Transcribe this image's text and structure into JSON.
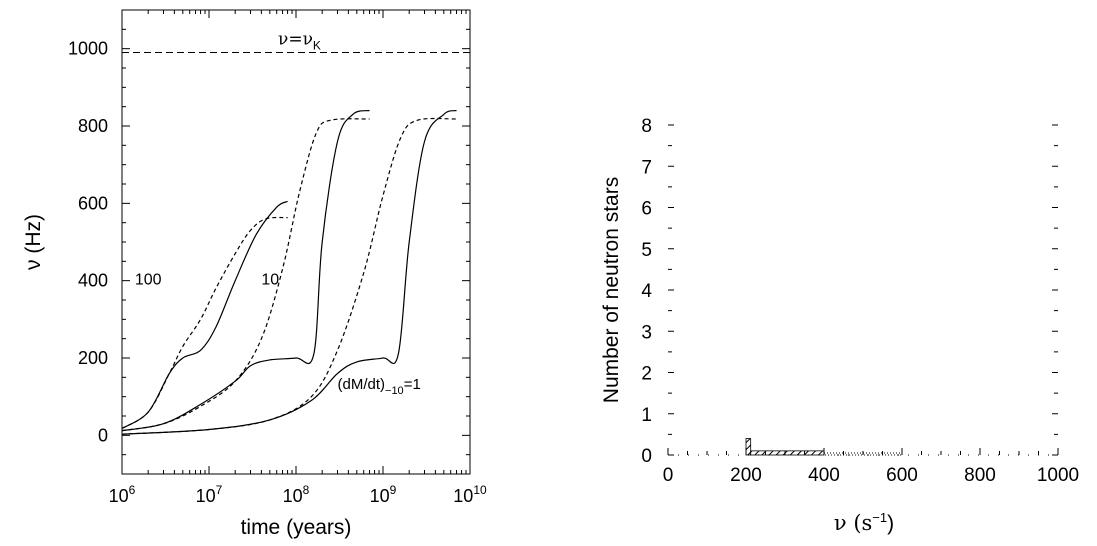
{
  "chart_data": [
    {
      "type": "line",
      "xscale": "log",
      "xlabel": "time (years)",
      "ylabel": "ν (Hz)",
      "xlim": [
        1000000,
        10000000000
      ],
      "ylim": [
        -100,
        1100
      ],
      "x_ticks": [
        {
          "value": 1000000,
          "base": "10",
          "exp": "6"
        },
        {
          "value": 10000000,
          "base": "10",
          "exp": "7"
        },
        {
          "value": 100000000,
          "base": "10",
          "exp": "8"
        },
        {
          "value": 1000000000,
          "base": "10",
          "exp": "9"
        },
        {
          "value": 10000000000,
          "base": "10",
          "exp": "10"
        }
      ],
      "y_ticks": [
        0,
        200,
        400,
        600,
        800,
        1000
      ],
      "kepler_line": {
        "y": 990,
        "label_main": "ν=ν",
        "label_sub": "K"
      },
      "annotations": [
        {
          "text": "100",
          "x": 2000000,
          "y": 390
        },
        {
          "text": "10",
          "x": 40000000,
          "y": 390
        },
        {
          "text": "(dM/dt)",
          "sub": "−10",
          "tail": "=1",
          "x": 300000000,
          "y": 120
        }
      ],
      "series": [
        {
          "style": "solid",
          "points": [
            [
              1000000,
              18
            ],
            [
              2000000,
              60
            ],
            [
              3500000,
              160
            ],
            [
              5000000,
              200
            ],
            [
              8000000,
              220
            ],
            [
              12000000,
              280
            ],
            [
              20000000,
              400
            ],
            [
              35000000,
              520
            ],
            [
              60000000,
              590
            ],
            [
              80000000,
              605
            ]
          ]
        },
        {
          "style": "dashed",
          "points": [
            [
              1000000,
              18
            ],
            [
              2000000,
              60
            ],
            [
              3500000,
              160
            ],
            [
              5000000,
              230
            ],
            [
              8000000,
              300
            ],
            [
              12000000,
              380
            ],
            [
              20000000,
              470
            ],
            [
              30000000,
              530
            ],
            [
              45000000,
              560
            ],
            [
              80000000,
              563
            ]
          ]
        },
        {
          "style": "solid",
          "points": [
            [
              1000000,
              12
            ],
            [
              3000000,
              30
            ],
            [
              8000000,
              80
            ],
            [
              20000000,
              140
            ],
            [
              30000000,
              180
            ],
            [
              50000000,
              195
            ],
            [
              100000000,
              200
            ],
            [
              160000000,
              210
            ],
            [
              200000000,
              500
            ],
            [
              300000000,
              760
            ],
            [
              450000000,
              830
            ],
            [
              700000000,
              840
            ]
          ]
        },
        {
          "style": "dashed",
          "points": [
            [
              1000000,
              12
            ],
            [
              3000000,
              30
            ],
            [
              8000000,
              75
            ],
            [
              20000000,
              140
            ],
            [
              40000000,
              250
            ],
            [
              70000000,
              430
            ],
            [
              110000000,
              630
            ],
            [
              170000000,
              780
            ],
            [
              250000000,
              815
            ],
            [
              700000000,
              818
            ]
          ]
        },
        {
          "style": "solid",
          "points": [
            [
              1000000,
              3
            ],
            [
              10000000,
              15
            ],
            [
              50000000,
              40
            ],
            [
              150000000,
              90
            ],
            [
              300000000,
              160
            ],
            [
              500000000,
              190
            ],
            [
              1000000000,
              200
            ],
            [
              1500000000,
              210
            ],
            [
              2000000000,
              500
            ],
            [
              3000000000,
              760
            ],
            [
              5000000000,
              830
            ],
            [
              7000000000,
              840
            ]
          ]
        },
        {
          "style": "dashed",
          "points": [
            [
              1000000,
              3
            ],
            [
              10000000,
              15
            ],
            [
              50000000,
              40
            ],
            [
              150000000,
              100
            ],
            [
              300000000,
              220
            ],
            [
              600000000,
              420
            ],
            [
              1000000000,
              620
            ],
            [
              1600000000,
              770
            ],
            [
              2500000000,
              815
            ],
            [
              7000000000,
              818
            ]
          ]
        }
      ]
    },
    {
      "type": "bar",
      "xlabel": "ν (s",
      "xlabel_sup": "−1",
      "xlabel_tail": ")",
      "ylabel": "Number of neutron stars",
      "xlim": [
        0,
        1000
      ],
      "ylim": [
        0,
        8
      ],
      "x_ticks": [
        0,
        200,
        400,
        600,
        800,
        1000
      ],
      "y_ticks": [
        0,
        1,
        2,
        3,
        4,
        5,
        6,
        7,
        8
      ],
      "bins": [
        {
          "x0": 200,
          "x1": 212,
          "value": 0.4,
          "style": "hatched"
        },
        {
          "x0": 212,
          "x1": 400,
          "value": 0.1,
          "style": "hatched"
        },
        {
          "x0": 400,
          "x1": 600,
          "value": 0.05,
          "style": "dotted"
        }
      ]
    }
  ]
}
